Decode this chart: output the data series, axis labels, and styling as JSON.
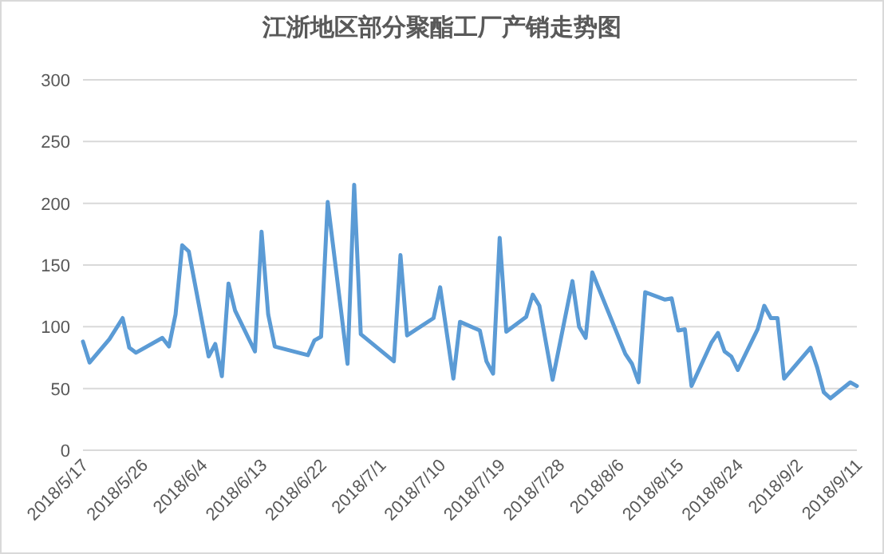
{
  "chart_data": {
    "type": "line",
    "title": "江浙地区部分聚酯工厂产销走势图",
    "x": [
      "2018-05-17",
      "2018-05-18",
      "2018-05-21",
      "2018-05-23",
      "2018-05-24",
      "2018-05-25",
      "2018-05-29",
      "2018-05-30",
      "2018-05-31",
      "2018-06-01",
      "2018-06-02",
      "2018-06-05",
      "2018-06-06",
      "2018-06-07",
      "2018-06-08",
      "2018-06-09",
      "2018-06-12",
      "2018-06-13",
      "2018-06-14",
      "2018-06-15",
      "2018-06-20",
      "2018-06-21",
      "2018-06-22",
      "2018-06-23",
      "2018-06-26",
      "2018-06-27",
      "2018-06-28",
      "2018-07-03",
      "2018-07-04",
      "2018-07-05",
      "2018-07-09",
      "2018-07-10",
      "2018-07-12",
      "2018-07-13",
      "2018-07-16",
      "2018-07-17",
      "2018-07-18",
      "2018-07-19",
      "2018-07-20",
      "2018-07-23",
      "2018-07-24",
      "2018-07-25",
      "2018-07-27",
      "2018-07-30",
      "2018-07-31",
      "2018-08-01",
      "2018-08-02",
      "2018-08-07",
      "2018-08-08",
      "2018-08-09",
      "2018-08-10",
      "2018-08-13",
      "2018-08-14",
      "2018-08-15",
      "2018-08-16",
      "2018-08-17",
      "2018-08-20",
      "2018-08-21",
      "2018-08-22",
      "2018-08-23",
      "2018-08-24",
      "2018-08-27",
      "2018-08-28",
      "2018-08-29",
      "2018-08-30",
      "2018-08-31",
      "2018-09-04",
      "2018-09-05",
      "2018-09-06",
      "2018-09-07",
      "2018-09-10",
      "2018-09-11"
    ],
    "series": [
      {
        "color": "#5b9bd5",
        "values": [
          88,
          71,
          90,
          107,
          83,
          79,
          91,
          84,
          110,
          166,
          161,
          76,
          86,
          60,
          135,
          113,
          80,
          177,
          110,
          84,
          77,
          89,
          92,
          201,
          70,
          215,
          94,
          72,
          158,
          93,
          107,
          132,
          58,
          104,
          97,
          72,
          62,
          172,
          96,
          108,
          126,
          117,
          57,
          137,
          100,
          91,
          144,
          78,
          70,
          55,
          128,
          122,
          123,
          97,
          98,
          52,
          87,
          95,
          80,
          76,
          65,
          98,
          117,
          107,
          107,
          58,
          83,
          67,
          47,
          42,
          55,
          52
        ]
      }
    ],
    "xlim": [
      "2018-05-17",
      "2018-09-11"
    ],
    "xticks": [
      {
        "value": "2018-05-17",
        "label": "2018/5/17"
      },
      {
        "value": "2018-05-26",
        "label": "2018/5/26"
      },
      {
        "value": "2018-06-04",
        "label": "2018/6/4"
      },
      {
        "value": "2018-06-13",
        "label": "2018/6/13"
      },
      {
        "value": "2018-06-22",
        "label": "2018/6/22"
      },
      {
        "value": "2018-07-01",
        "label": "2018/7/1"
      },
      {
        "value": "2018-07-10",
        "label": "2018/7/10"
      },
      {
        "value": "2018-07-19",
        "label": "2018/7/19"
      },
      {
        "value": "2018-07-28",
        "label": "2018/7/28"
      },
      {
        "value": "2018-08-06",
        "label": "2018/8/6"
      },
      {
        "value": "2018-08-15",
        "label": "2018/8/15"
      },
      {
        "value": "2018-08-24",
        "label": "2018/8/24"
      },
      {
        "value": "2018-09-02",
        "label": "2018/9/2"
      },
      {
        "value": "2018-09-11",
        "label": "2018/9/11"
      }
    ],
    "ylim": [
      0,
      300
    ],
    "yticks": [
      0,
      50,
      100,
      150,
      200,
      250,
      300
    ],
    "grid": "y",
    "marker": "none",
    "line_style": "solid"
  }
}
